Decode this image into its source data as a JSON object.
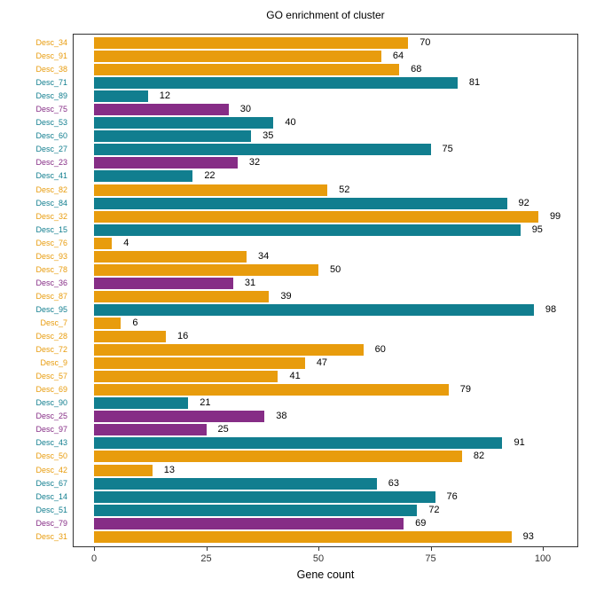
{
  "chart_data": {
    "type": "bar",
    "orientation": "horizontal",
    "title": "GO enrichment of cluster",
    "xlabel": "Gene count",
    "ylabel": "",
    "xlim": [
      0,
      100
    ],
    "x_ticks": [
      0,
      25,
      50,
      75,
      100
    ],
    "grid": false,
    "legend": "none",
    "value_labels": "shown at end of each bar",
    "palette": {
      "orange": "#E89C0D",
      "teal": "#117E8F",
      "purple": "#862D86"
    },
    "axis_text_color": "#333333",
    "bars": [
      {
        "label": "Desc_34",
        "value": 70,
        "color": "orange"
      },
      {
        "label": "Desc_91",
        "value": 64,
        "color": "orange"
      },
      {
        "label": "Desc_38",
        "value": 68,
        "color": "orange"
      },
      {
        "label": "Desc_71",
        "value": 81,
        "color": "teal"
      },
      {
        "label": "Desc_89",
        "value": 12,
        "color": "teal"
      },
      {
        "label": "Desc_75",
        "value": 30,
        "color": "purple"
      },
      {
        "label": "Desc_53",
        "value": 40,
        "color": "teal"
      },
      {
        "label": "Desc_60",
        "value": 35,
        "color": "teal"
      },
      {
        "label": "Desc_27",
        "value": 75,
        "color": "teal"
      },
      {
        "label": "Desc_23",
        "value": 32,
        "color": "purple"
      },
      {
        "label": "Desc_41",
        "value": 22,
        "color": "teal"
      },
      {
        "label": "Desc_82",
        "value": 52,
        "color": "orange"
      },
      {
        "label": "Desc_84",
        "value": 92,
        "color": "teal"
      },
      {
        "label": "Desc_32",
        "value": 99,
        "color": "orange"
      },
      {
        "label": "Desc_15",
        "value": 95,
        "color": "teal"
      },
      {
        "label": "Desc_76",
        "value": 4,
        "color": "orange"
      },
      {
        "label": "Desc_93",
        "value": 34,
        "color": "orange"
      },
      {
        "label": "Desc_78",
        "value": 50,
        "color": "orange"
      },
      {
        "label": "Desc_36",
        "value": 31,
        "color": "purple"
      },
      {
        "label": "Desc_87",
        "value": 39,
        "color": "orange"
      },
      {
        "label": "Desc_95",
        "value": 98,
        "color": "teal"
      },
      {
        "label": "Desc_7",
        "value": 6,
        "color": "orange"
      },
      {
        "label": "Desc_28",
        "value": 16,
        "color": "orange"
      },
      {
        "label": "Desc_72",
        "value": 60,
        "color": "orange"
      },
      {
        "label": "Desc_9",
        "value": 47,
        "color": "orange"
      },
      {
        "label": "Desc_57",
        "value": 41,
        "color": "orange"
      },
      {
        "label": "Desc_69",
        "value": 79,
        "color": "orange"
      },
      {
        "label": "Desc_90",
        "value": 21,
        "color": "teal"
      },
      {
        "label": "Desc_25",
        "value": 38,
        "color": "purple"
      },
      {
        "label": "Desc_97",
        "value": 25,
        "color": "purple"
      },
      {
        "label": "Desc_43",
        "value": 91,
        "color": "teal"
      },
      {
        "label": "Desc_50",
        "value": 82,
        "color": "orange"
      },
      {
        "label": "Desc_42",
        "value": 13,
        "color": "orange"
      },
      {
        "label": "Desc_67",
        "value": 63,
        "color": "teal"
      },
      {
        "label": "Desc_14",
        "value": 76,
        "color": "teal"
      },
      {
        "label": "Desc_51",
        "value": 72,
        "color": "teal"
      },
      {
        "label": "Desc_79",
        "value": 69,
        "color": "purple"
      },
      {
        "label": "Desc_31",
        "value": 93,
        "color": "orange"
      }
    ]
  }
}
